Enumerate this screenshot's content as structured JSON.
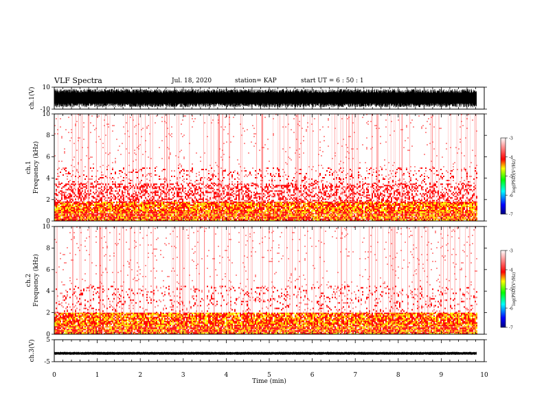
{
  "header": {
    "title": "VLF Spectra",
    "date": "Jul. 18, 2020",
    "station": "station= KAP",
    "start": "start UT =  6 : 50 : 1"
  },
  "chart_data": [
    {
      "id": "ch1-waveform",
      "type": "line",
      "ylabel": "ch.1(V)",
      "ylim": [
        -10,
        10
      ],
      "y_ticks": [
        "10",
        "-10"
      ],
      "xlim": [
        0,
        10
      ],
      "data_extent_x": [
        0,
        9.82
      ],
      "description_values": {
        "amplitude_range_V": [
          -10,
          10
        ]
      }
    },
    {
      "id": "ch1-spectrogram",
      "type": "heatmap",
      "ylabel": "ch.1\nFrequency (kHz)",
      "ylim": [
        0,
        10
      ],
      "y_ticks": [
        "0",
        "2",
        "4",
        "6",
        "8",
        "10"
      ],
      "xlim": [
        0,
        10
      ],
      "data_extent_x": [
        0,
        9.82
      ],
      "colorbar": {
        "label": "log(PSD)(V²/Hz)",
        "range": [
          -7,
          -3
        ],
        "ticks": [
          "-3",
          "-4",
          "-5",
          "-6",
          "-7"
        ],
        "colors": [
          "#000080",
          "#0000ff",
          "#00ffff",
          "#00ff00",
          "#ffff00",
          "#ff0000",
          "#ffffff"
        ]
      },
      "bands": [
        {
          "from_khz": 0.0,
          "to_khz": 1.0,
          "level": "strong"
        },
        {
          "from_khz": 1.0,
          "to_khz": 1.8,
          "level": "strong"
        },
        {
          "from_khz": 1.8,
          "to_khz": 3.5,
          "level": "medium"
        },
        {
          "from_khz": 3.5,
          "to_khz": 5.0,
          "level": "weak"
        },
        {
          "from_khz": 5.0,
          "to_khz": 10.0,
          "level": "faint"
        }
      ]
    },
    {
      "id": "ch2-spectrogram",
      "type": "heatmap",
      "ylabel": "ch.2\nFrequency (kHz)",
      "ylim": [
        0,
        10
      ],
      "y_ticks": [
        "0",
        "2",
        "4",
        "6",
        "8",
        "10"
      ],
      "xlim": [
        0,
        10
      ],
      "data_extent_x": [
        0,
        9.82
      ],
      "colorbar": {
        "label": "log(PSD)(V²/Hz)",
        "range": [
          -7,
          -3
        ],
        "ticks": [
          "-3",
          "-4",
          "-5",
          "-6",
          "-7"
        ],
        "colors": [
          "#000080",
          "#0000ff",
          "#00ffff",
          "#00ff00",
          "#ffff00",
          "#ff0000",
          "#ffffff"
        ]
      },
      "bands": [
        {
          "from_khz": 0.0,
          "to_khz": 1.0,
          "level": "strong"
        },
        {
          "from_khz": 1.0,
          "to_khz": 2.0,
          "level": "strong"
        },
        {
          "from_khz": 2.0,
          "to_khz": 4.5,
          "level": "weak"
        },
        {
          "from_khz": 4.5,
          "to_khz": 10.0,
          "level": "faint"
        }
      ]
    },
    {
      "id": "ch3-waveform",
      "type": "line",
      "ylabel": "ch.3(V)",
      "ylim": [
        -5,
        5
      ],
      "y_ticks": [
        "5",
        "-5"
      ],
      "xlim": [
        0,
        10
      ],
      "data_extent_x": [
        0,
        9.82
      ],
      "description_values": {
        "amplitude_range_V": [
          -1.6,
          -0.8
        ]
      },
      "xlabel": "Time (min)",
      "x_ticks": [
        "0",
        "1",
        "2",
        "3",
        "4",
        "5",
        "6",
        "7",
        "8",
        "9",
        "10"
      ]
    }
  ]
}
